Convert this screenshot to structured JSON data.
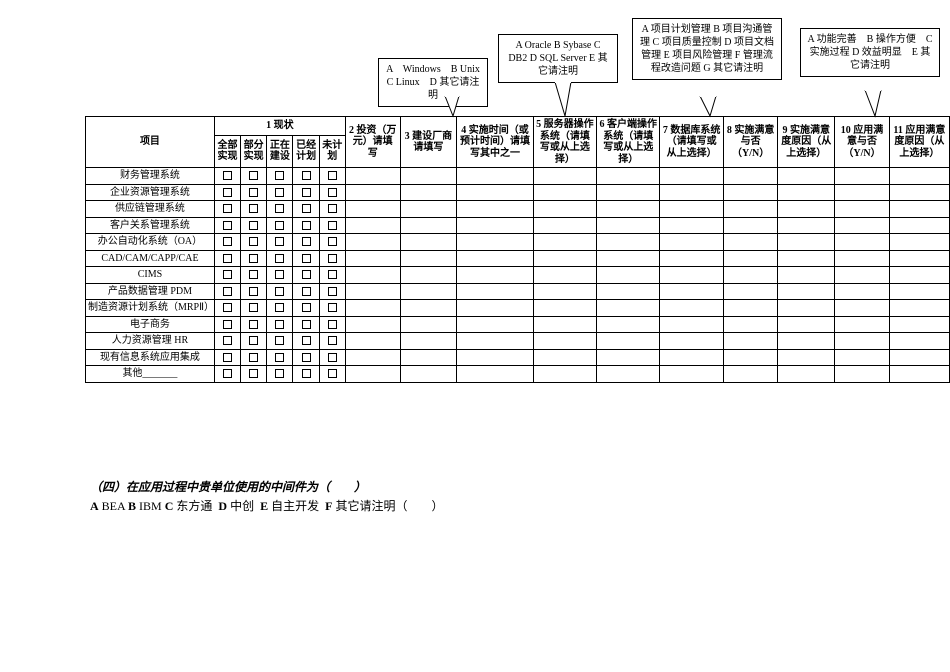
{
  "callouts": {
    "c1": "A　Windows　B Unix C Linux　D 其它请注明",
    "c2": "A Oracle B Sybase C DB2 D SQL Server E 其它请注明",
    "c3": "A 项目计划管理 B 项目沟通管理 C 项目质量控制 D 项目文档管理 E 项目风险管理 F 管理流程改造问题 G 其它请注明",
    "c4": "A 功能完善　B 操作方便　C 实施过程 D 效益明显　E 其它请注明"
  },
  "headers": {
    "project": "项目",
    "sec1": "1 现状",
    "sec1_cols": [
      "全部实现",
      "部分实现",
      "正在建设",
      "已经计划",
      "未计划"
    ],
    "h2": "2 投资（万元）请填写",
    "h3": "3 建设厂商请填写",
    "h4": "4 实施时间（或预计时间）请填写其中之一",
    "h5": "5 服务器操作系统（请填写或从上选择）",
    "h6": "6 客户端操作系统（请填写或从上选择）",
    "h7": "7 数据库系统（请填写或从上选择）",
    "h8": "8 实施满意与否（Y/N）",
    "h9": "9 实施满意度原因（从上选择）",
    "h10": "10 应用满意与否（Y/N）",
    "h11": "11 应用满意度原因（从上选择）"
  },
  "rows": [
    "财务管理系统",
    "企业资源管理系统",
    "供应链管理系统",
    "客户关系管理系统",
    "办公自动化系统（OA）",
    "CAD/CAM/CAPP/CAE",
    "CIMS",
    "产品数据管理 PDM",
    "制造资源计划系统（MRPⅡ）",
    "电子商务",
    "人力资源管理 HR",
    "现有信息系统应用集成",
    "其他_______"
  ],
  "footer": {
    "line1_prefix": "（四）在应用过程中贵单位使用的中间件为（　　）",
    "line2": "A BEA B IBM C 东方通  D 中创  E 自主开发  F 其它请注明（　　）"
  },
  "style": {
    "border_color": "#000000",
    "bg": "#ffffff",
    "font": "SimSun"
  }
}
